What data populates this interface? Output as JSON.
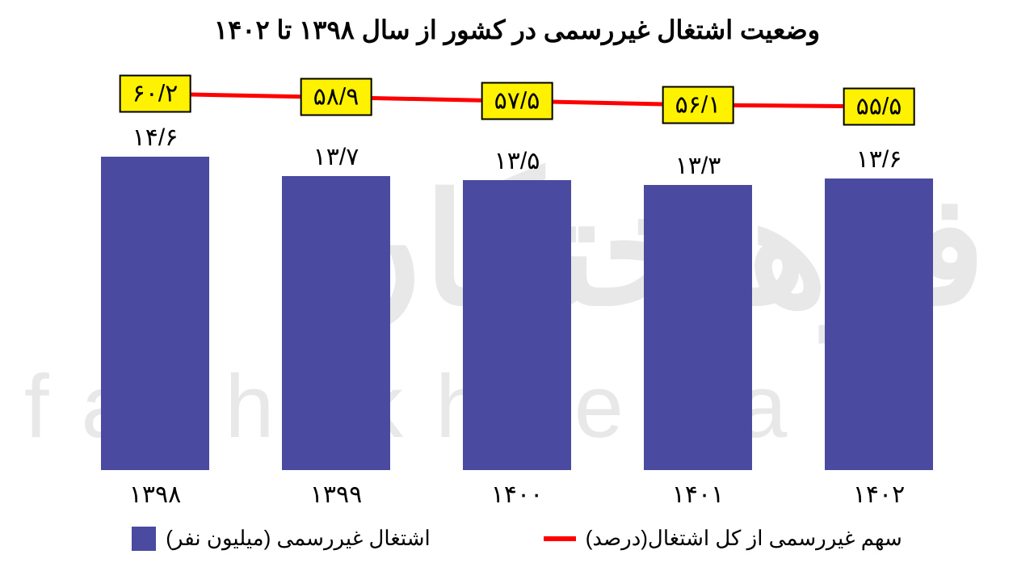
{
  "title": "وضعیت اشتغال غیررسمی در کشور از سال ۱۳۹۸ تا ۱۴۰۲",
  "watermark_fa": "فرهیختگان",
  "watermark_en": "farhikhtegan",
  "chart": {
    "type": "bar+line",
    "background_color": "#ffffff",
    "watermark_color": "#e8e8e8",
    "categories": [
      "۱۳۹۸",
      "۱۳۹۹",
      "۱۴۰۰",
      "۱۴۰۱",
      "۱۴۰۲"
    ],
    "bar_series": {
      "label": "اشتغال غیررسمی (میلیون نفر)",
      "color": "#4a4aa0",
      "values_display": [
        "۱۴/۶",
        "۱۳/۷",
        "۱۳/۵",
        "۱۳/۳",
        "۱۳/۶"
      ],
      "values": [
        14.6,
        13.7,
        13.5,
        13.3,
        13.6
      ],
      "y_max": 15.5,
      "bar_width_pct": 12,
      "label_fontsize": 30
    },
    "line_series": {
      "label": "سهم غیررسمی از کل اشتغال(درصد)",
      "color": "#ff0000",
      "box_fill": "#fff200",
      "box_border": "#000000",
      "line_width": 5,
      "values_display": [
        "۶۰/۲",
        "۵۸/۹",
        "۵۷/۵",
        "۵۶/۱",
        "۵۵/۵"
      ],
      "values": [
        60.2,
        58.9,
        57.5,
        56.1,
        55.5
      ],
      "y_min": 50,
      "y_max": 65
    },
    "x_positions_pct": [
      10,
      30,
      50,
      70,
      90
    ],
    "axis_label_fontsize": 30,
    "title_fontsize": 32,
    "legend_fontsize": 26
  }
}
